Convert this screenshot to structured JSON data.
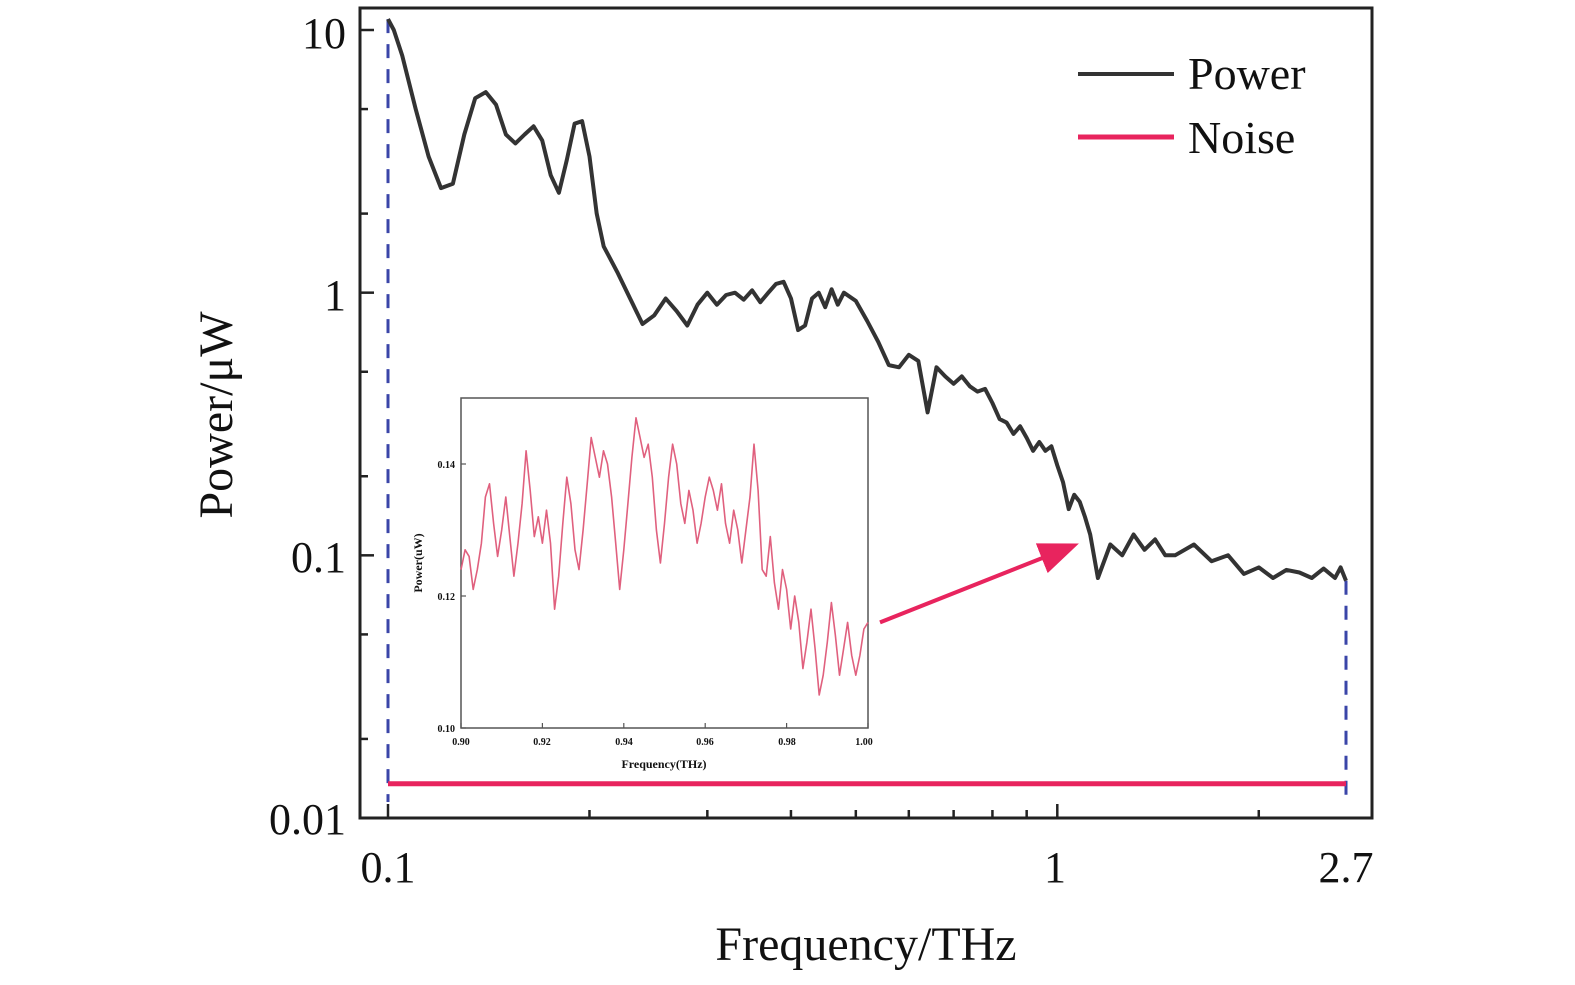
{
  "chart_data": [
    {
      "type": "line",
      "title": "",
      "xlabel": "Frequency/THz",
      "ylabel": "Power/μW",
      "xscale": "log",
      "yscale": "log",
      "xlim": [
        0.1,
        2.7
      ],
      "ylim": [
        0.01,
        12
      ],
      "xtick_labels": [
        "0.1",
        "1",
        "2.7"
      ],
      "xtick_values": [
        0.1,
        1,
        2.7
      ],
      "ytick_labels": [
        "0.01",
        "0.1",
        "1",
        "10"
      ],
      "ytick_values": [
        0.01,
        0.1,
        1,
        10
      ],
      "legend_position": "top-right",
      "grid": false,
      "series": [
        {
          "name": "Power",
          "color": "#333333",
          "x": [
            0.1,
            0.102,
            0.105,
            0.11,
            0.115,
            0.12,
            0.125,
            0.13,
            0.135,
            0.14,
            0.145,
            0.15,
            0.155,
            0.16,
            0.165,
            0.17,
            0.175,
            0.18,
            0.185,
            0.19,
            0.195,
            0.2,
            0.205,
            0.21,
            0.22,
            0.23,
            0.24,
            0.25,
            0.26,
            0.27,
            0.28,
            0.29,
            0.3,
            0.31,
            0.32,
            0.33,
            0.34,
            0.35,
            0.36,
            0.37,
            0.38,
            0.39,
            0.4,
            0.41,
            0.42,
            0.43,
            0.44,
            0.45,
            0.46,
            0.47,
            0.48,
            0.5,
            0.52,
            0.54,
            0.56,
            0.58,
            0.6,
            0.62,
            0.64,
            0.66,
            0.68,
            0.7,
            0.72,
            0.74,
            0.76,
            0.78,
            0.8,
            0.82,
            0.84,
            0.86,
            0.88,
            0.9,
            0.92,
            0.94,
            0.96,
            0.98,
            1.0,
            1.02,
            1.04,
            1.06,
            1.08,
            1.1,
            1.12,
            1.15,
            1.2,
            1.25,
            1.3,
            1.35,
            1.4,
            1.45,
            1.5,
            1.6,
            1.7,
            1.8,
            1.9,
            2.0,
            2.1,
            2.2,
            2.3,
            2.4,
            2.5,
            2.6,
            2.65,
            2.7
          ],
          "y": [
            11,
            10,
            8,
            5,
            3.3,
            2.5,
            2.6,
            4.0,
            5.5,
            5.8,
            5.2,
            4.0,
            3.7,
            4.0,
            4.3,
            3.8,
            2.8,
            2.4,
            3.2,
            4.4,
            4.5,
            3.3,
            2.0,
            1.5,
            1.2,
            0.95,
            0.76,
            0.82,
            0.95,
            0.85,
            0.75,
            0.9,
            1.0,
            0.9,
            0.98,
            1.0,
            0.94,
            1.02,
            0.92,
            1.0,
            1.08,
            1.1,
            0.95,
            0.72,
            0.75,
            0.95,
            1.0,
            0.88,
            1.03,
            0.9,
            1.0,
            0.93,
            0.78,
            0.65,
            0.53,
            0.52,
            0.58,
            0.55,
            0.35,
            0.52,
            0.48,
            0.45,
            0.48,
            0.44,
            0.42,
            0.43,
            0.38,
            0.33,
            0.32,
            0.29,
            0.31,
            0.28,
            0.25,
            0.27,
            0.25,
            0.26,
            0.22,
            0.19,
            0.15,
            0.17,
            0.16,
            0.14,
            0.12,
            0.082,
            0.11,
            0.1,
            0.12,
            0.105,
            0.115,
            0.1,
            0.1,
            0.11,
            0.095,
            0.1,
            0.085,
            0.09,
            0.082,
            0.088,
            0.086,
            0.082,
            0.089,
            0.082,
            0.09,
            0.08
          ]
        },
        {
          "name": "Noise",
          "color": "#e8245e",
          "x": [
            0.1,
            2.7
          ],
          "y": [
            0.0135,
            0.0135
          ]
        }
      ],
      "annotations": {
        "bounds_color": "#3a45a8",
        "bound_lines_x": [
          0.1,
          2.7
        ],
        "arrow_color": "#e8245e",
        "arrow_target": {
          "x": 1.05,
          "y": 0.11
        }
      }
    },
    {
      "type": "line",
      "title": "",
      "xlabel": "Frequency(THz)",
      "ylabel": "Power(uW)",
      "xlim": [
        0.9,
        1.0
      ],
      "ylim": [
        0.1,
        0.15
      ],
      "xtick_labels": [
        "0.90",
        "0.92",
        "0.94",
        "0.96",
        "0.98",
        "1.00"
      ],
      "xtick_values": [
        0.9,
        0.92,
        0.94,
        0.96,
        0.98,
        1.0
      ],
      "ytick_labels": [
        "0.10",
        "0.12",
        "0.14"
      ],
      "ytick_values": [
        0.1,
        0.12,
        0.14
      ],
      "series": [
        {
          "name": "",
          "color": "#e0607e",
          "x": [
            0.9,
            0.901,
            0.902,
            0.903,
            0.904,
            0.905,
            0.906,
            0.907,
            0.908,
            0.909,
            0.91,
            0.911,
            0.912,
            0.913,
            0.914,
            0.915,
            0.916,
            0.917,
            0.918,
            0.919,
            0.92,
            0.921,
            0.922,
            0.923,
            0.924,
            0.925,
            0.926,
            0.927,
            0.928,
            0.929,
            0.93,
            0.931,
            0.932,
            0.933,
            0.934,
            0.935,
            0.936,
            0.937,
            0.938,
            0.939,
            0.94,
            0.941,
            0.942,
            0.943,
            0.944,
            0.945,
            0.946,
            0.947,
            0.948,
            0.949,
            0.95,
            0.951,
            0.952,
            0.953,
            0.954,
            0.955,
            0.956,
            0.957,
            0.958,
            0.959,
            0.96,
            0.961,
            0.962,
            0.963,
            0.964,
            0.965,
            0.966,
            0.967,
            0.968,
            0.969,
            0.97,
            0.971,
            0.972,
            0.973,
            0.974,
            0.975,
            0.976,
            0.977,
            0.978,
            0.979,
            0.98,
            0.981,
            0.982,
            0.983,
            0.984,
            0.985,
            0.986,
            0.987,
            0.988,
            0.989,
            0.99,
            0.991,
            0.992,
            0.993,
            0.994,
            0.995,
            0.996,
            0.997,
            0.998,
            0.999,
            1.0
          ],
          "y": [
            0.124,
            0.127,
            0.126,
            0.121,
            0.124,
            0.128,
            0.135,
            0.137,
            0.131,
            0.126,
            0.13,
            0.135,
            0.129,
            0.123,
            0.128,
            0.134,
            0.142,
            0.136,
            0.129,
            0.132,
            0.128,
            0.133,
            0.128,
            0.118,
            0.123,
            0.131,
            0.138,
            0.134,
            0.127,
            0.124,
            0.13,
            0.137,
            0.144,
            0.141,
            0.138,
            0.142,
            0.14,
            0.135,
            0.128,
            0.121,
            0.127,
            0.134,
            0.141,
            0.147,
            0.144,
            0.141,
            0.143,
            0.138,
            0.13,
            0.125,
            0.131,
            0.138,
            0.143,
            0.14,
            0.134,
            0.131,
            0.136,
            0.133,
            0.128,
            0.131,
            0.135,
            0.138,
            0.136,
            0.133,
            0.137,
            0.131,
            0.128,
            0.133,
            0.13,
            0.125,
            0.13,
            0.135,
            0.143,
            0.136,
            0.124,
            0.123,
            0.129,
            0.122,
            0.118,
            0.124,
            0.121,
            0.115,
            0.12,
            0.116,
            0.109,
            0.113,
            0.118,
            0.112,
            0.105,
            0.108,
            0.113,
            0.119,
            0.114,
            0.108,
            0.112,
            0.116,
            0.111,
            0.108,
            0.111,
            0.115,
            0.116
          ]
        }
      ]
    }
  ]
}
